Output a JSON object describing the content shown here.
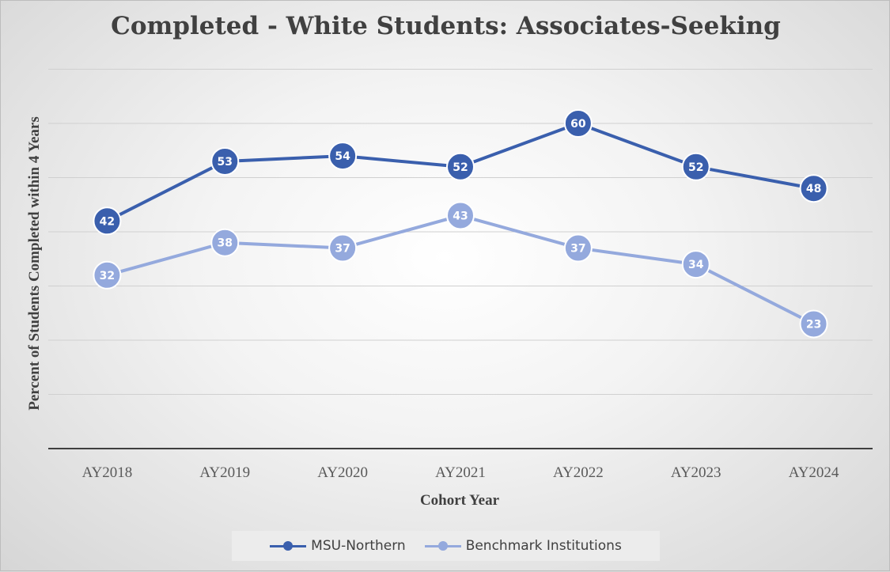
{
  "chart_data": {
    "type": "line",
    "title": "Completed - White Students: Associates-Seeking",
    "xlabel": "Cohort Year",
    "ylabel": "Percent of Students Completed within 4 Years",
    "categories": [
      "AY2018",
      "AY2019",
      "AY2020",
      "AY2021",
      "AY2022",
      "AY2023",
      "AY2024"
    ],
    "ylim": [
      0,
      70
    ],
    "grid": true,
    "legend_position": "bottom",
    "series": [
      {
        "name": "MSU-Northern",
        "values": [
          42,
          53,
          54,
          52,
          60,
          52,
          48
        ],
        "color": "#3a5fad"
      },
      {
        "name": "Benchmark Institutions",
        "values": [
          32,
          38,
          37,
          43,
          37,
          34,
          23
        ],
        "color": "#94a9dd"
      }
    ]
  }
}
